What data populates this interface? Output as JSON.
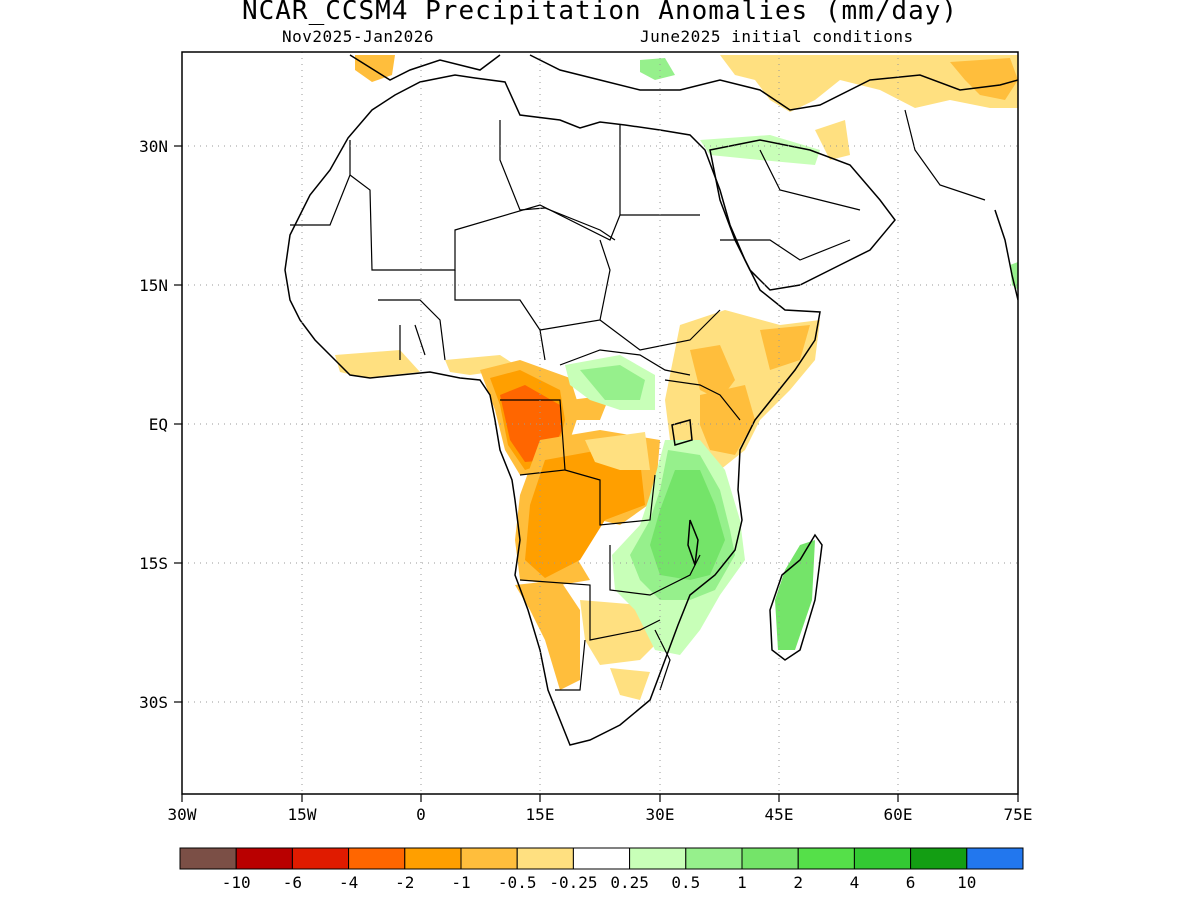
{
  "title": "NCAR_CCSM4 Precipitation Anomalies (mm/day)",
  "subtitle_left": "Nov2025-Jan2026",
  "subtitle_right": "June2025 initial conditions",
  "axes": {
    "x_ticks": [
      "30W",
      "15W",
      "0",
      "15E",
      "30E",
      "45E",
      "60E",
      "75E"
    ],
    "y_ticks": [
      "30N",
      "15N",
      "EQ",
      "15S",
      "30S"
    ]
  },
  "colorbar": {
    "colors": [
      "#7b4f46",
      "#b90000",
      "#e01b00",
      "#ff6600",
      "#ff9f00",
      "#ffbe3c",
      "#ffe080",
      "#ffffff",
      "#c8ffb8",
      "#96f08c",
      "#74e469",
      "#55e049",
      "#33c933",
      "#139e13",
      "#2277ee"
    ],
    "tick_labels": [
      "-10",
      "-6",
      "-4",
      "-2",
      "-1",
      "-0.5",
      "-0.25",
      "0.25",
      "0.5",
      "1",
      "2",
      "4",
      "6",
      "10"
    ]
  },
  "chart_data": {
    "type": "heatmap",
    "map": "precipitation anomaly map over Africa and Arabian Peninsula",
    "extent": {
      "lon": [
        -30,
        75
      ],
      "lat": [
        -40,
        40
      ]
    },
    "grid": "dotted gridlines every 15 degrees",
    "units": "mm/day",
    "regions": [
      {
        "name": "Gabon / Congo",
        "lon": 12,
        "lat": 0,
        "category": "-4 to -2"
      },
      {
        "name": "Congo basin / Angola",
        "lon": 16,
        "lat": -10,
        "category": "-2 to -0.5"
      },
      {
        "name": "Ghana / Nigeria coast",
        "lon": 2,
        "lat": 6,
        "category": "-1 to -0.25"
      },
      {
        "name": "Kenya / Ethiopia / Somalia",
        "lon": 40,
        "lat": 3,
        "category": "-1 to -0.25"
      },
      {
        "name": "Arabian / Iran region",
        "lon": 55,
        "lat": 34,
        "category": "-1 to -0.25"
      },
      {
        "name": "Botswana / South Africa",
        "lon": 22,
        "lat": -22,
        "category": "-0.5 to -0.25"
      },
      {
        "name": "Tanzania / Mozambique / Zambia",
        "lon": 33,
        "lat": -12,
        "category": "0.5 to 2"
      },
      {
        "name": "Madagascar",
        "lon": 46,
        "lat": -20,
        "category": "0.5 to 2"
      },
      {
        "name": "South Sudan / CAR",
        "lon": 25,
        "lat": 6,
        "category": "0.25 to 1"
      }
    ]
  }
}
